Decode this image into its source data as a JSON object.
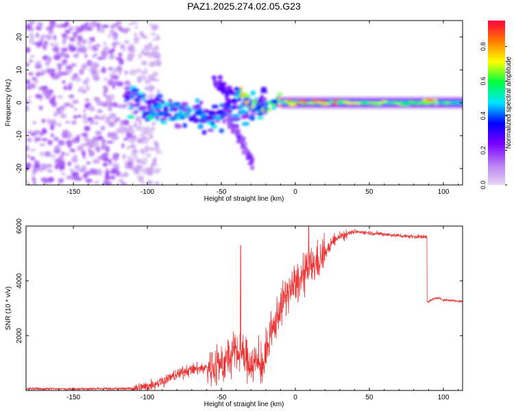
{
  "title": "PAZ1.2025.274.02.05.G23",
  "chart_data": [
    {
      "type": "heatmap",
      "xlabel": "Height of straight line (km)",
      "ylabel": "Frequency (Hz)",
      "xlim": [
        -182,
        113
      ],
      "ylim": [
        -25,
        25
      ],
      "xticks": [
        -150,
        -100,
        -50,
        0,
        50,
        100
      ],
      "yticks": [
        -20,
        -10,
        0,
        10,
        20
      ],
      "colorbar": {
        "label": "Normalized spectral amplitude",
        "range": [
          0,
          0.95
        ],
        "ticks": [
          0.0,
          0.2,
          0.4,
          0.6,
          0.8
        ],
        "colormap": [
          "#e6d6f5",
          "#b67ef0",
          "#7a00ff",
          "#0000ff",
          "#00e5ff",
          "#00ff40",
          "#ffff00",
          "#ff7a00",
          "#ff0040"
        ]
      },
      "features": [
        {
          "name": "noise-region",
          "x_range": [
            -182,
            -100
          ],
          "y_range": [
            -25,
            25
          ],
          "amplitude": 0.12
        },
        {
          "name": "fragment-band",
          "x_range": [
            -115,
            -20
          ],
          "y_range": [
            -15,
            8
          ],
          "amplitude": 0.35
        },
        {
          "name": "upper-branch",
          "x_range": [
            -55,
            -40
          ],
          "y_range": [
            0,
            8
          ],
          "amplitude": 0.2
        },
        {
          "name": "lower-branch",
          "x_range": [
            -45,
            -28
          ],
          "y_range": [
            -20,
            -5
          ],
          "amplitude": 0.15
        },
        {
          "name": "converging-arc",
          "x_range": [
            -40,
            -10
          ],
          "y_range": [
            -2,
            5
          ],
          "amplitude": 0.4
        },
        {
          "name": "main-tone",
          "x_range": [
            -10,
            113
          ],
          "y_range": [
            -1,
            1
          ],
          "amplitude": 0.5
        },
        {
          "name": "peak-spot",
          "x": 91,
          "y": 0.8,
          "amplitude": 0.9
        }
      ]
    },
    {
      "type": "line",
      "xlabel": "Height of straight line (km)",
      "ylabel": "SNR (10 * v/v)",
      "xlim": [
        -182,
        113
      ],
      "ylim": [
        0,
        6000
      ],
      "xticks": [
        -150,
        -100,
        -50,
        0,
        50,
        100
      ],
      "yticks": [
        2000,
        4000,
        6000
      ],
      "color": "#ee3030",
      "series": [
        {
          "name": "SNR",
          "x": [
            -182,
            -150,
            -120,
            -105,
            -95,
            -85,
            -75,
            -65,
            -55,
            -48,
            -40,
            -30,
            -22,
            -18,
            -12,
            -5,
            0,
            5,
            10,
            15,
            20,
            25,
            30,
            40,
            50,
            60,
            70,
            80,
            89,
            90,
            95,
            100,
            113
          ],
          "y": [
            60,
            60,
            65,
            80,
            250,
            450,
            700,
            800,
            850,
            1000,
            1400,
            1050,
            900,
            1600,
            2800,
            3600,
            3800,
            4100,
            4500,
            4700,
            5000,
            5400,
            5650,
            5800,
            5750,
            5700,
            5650,
            5620,
            5600,
            3250,
            3380,
            3310,
            3250
          ]
        }
      ]
    }
  ]
}
